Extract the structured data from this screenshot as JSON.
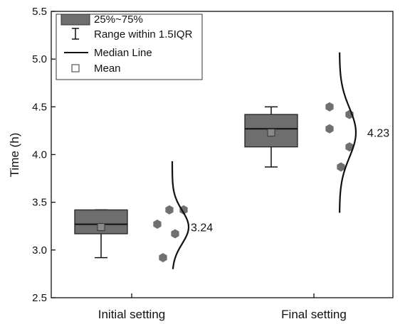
{
  "chart_data": {
    "type": "box",
    "title": "",
    "xlabel": "",
    "ylabel": "Time (h)",
    "ylim": [
      2.5,
      5.5
    ],
    "yticks": [
      "2.5",
      "3.0",
      "3.5",
      "4.0",
      "4.5",
      "5.0",
      "5.5"
    ],
    "categories": [
      "Initial setting",
      "Final setting"
    ],
    "grid": false,
    "legend_position": "top-left",
    "legend": [
      "25%~75%",
      "Range within 1.5IQR",
      "Median Line",
      "Mean"
    ],
    "box_color": "#6e6e6e",
    "point_color": "#707070",
    "groups": [
      {
        "q1": 3.17,
        "q3": 3.42,
        "median": 3.27,
        "mean": 3.24,
        "whisker_low": 2.92,
        "whisker_high": 3.42,
        "mean_label": "3.24",
        "points": [
          3.42,
          3.42,
          3.27,
          3.17,
          2.92
        ],
        "curve_range": [
          2.8,
          3.93
        ]
      },
      {
        "q1": 4.08,
        "q3": 4.42,
        "median": 4.27,
        "mean": 4.23,
        "whisker_low": 3.87,
        "whisker_high": 4.5,
        "mean_label": "4.23",
        "points": [
          4.5,
          4.42,
          4.27,
          4.08,
          3.87
        ],
        "curve_range": [
          3.39,
          5.07
        ]
      }
    ]
  }
}
